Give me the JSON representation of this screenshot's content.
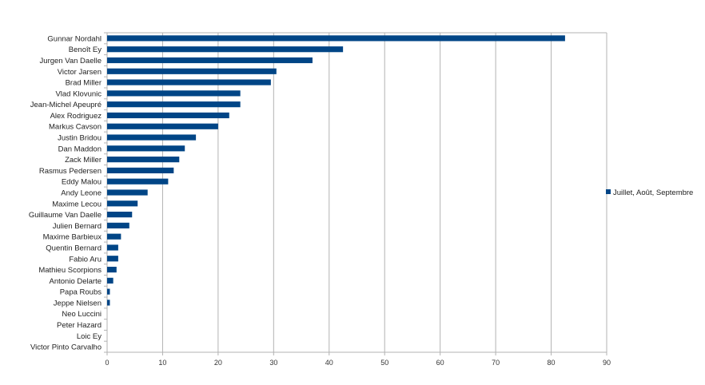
{
  "chart_data": {
    "type": "bar",
    "orientation": "horizontal",
    "categories": [
      "Gunnar Nordahl",
      "Benoît Ey",
      "Jurgen Van Daelle",
      "Victor Jarsen",
      "Brad Miller",
      "Vlad Klovunic",
      "Jean-Michel Apeupré",
      "Alex Rodriguez",
      "Markus Cavson",
      "Justin Bridou",
      "Dan Maddon",
      "Zack Miller",
      "Rasmus Pedersen",
      "Eddy Malou",
      "Andy Leone",
      "Maxime Lecou",
      "Guillaume Van Daelle",
      "Julien Bernard",
      "Maxime Barbieux",
      "Quentin Bernard",
      "Fabio Aru",
      "Mathieu Scorpions",
      "Antonio Delarte",
      "Papa Roubs",
      "Jeppe Nielsen",
      "Neo Luccini",
      "Peter Hazard",
      "Loic Ey",
      "Victor Pinto Carvalho"
    ],
    "series": [
      {
        "name": "Juillet, Août, Septembre",
        "color": "#004586",
        "values": [
          82.5,
          42.5,
          37,
          30.5,
          29.5,
          24,
          24,
          22,
          20,
          16,
          14,
          13,
          12,
          11,
          7.3,
          5.5,
          4.5,
          4,
          2.5,
          2,
          2,
          1.7,
          1.1,
          0.5,
          0.5,
          0,
          0,
          0,
          0
        ]
      }
    ],
    "xlim": [
      0,
      90
    ],
    "xticks": [
      "0",
      "10",
      "20",
      "30",
      "40",
      "50",
      "60",
      "70",
      "80",
      "90"
    ],
    "grid": true,
    "legend_position": "right",
    "colors": {
      "bar": "#004586",
      "grid": "#b3b3b3",
      "axis": "#b3b3b3"
    }
  }
}
